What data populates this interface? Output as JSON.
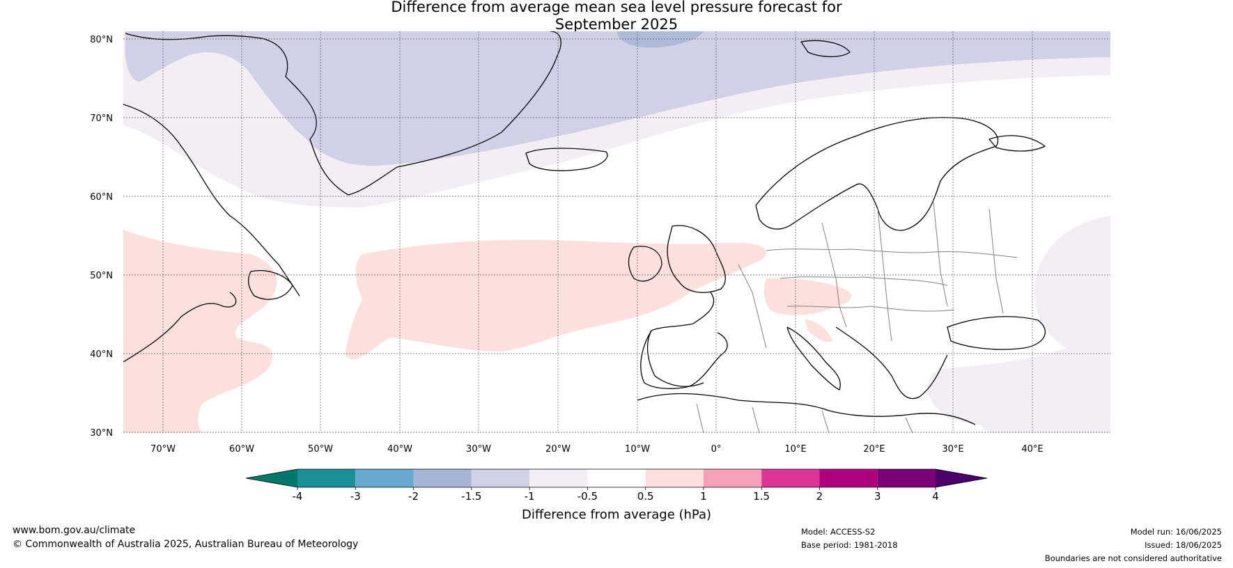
{
  "title": {
    "line1": "Difference from average mean sea level pressure forecast for",
    "line2": "September 2025"
  },
  "map": {
    "lat_labels": [
      "80°N",
      "70°N",
      "60°N",
      "50°N",
      "40°N",
      "30°N"
    ],
    "lon_labels": [
      "70°W",
      "60°W",
      "50°W",
      "40°W",
      "30°W",
      "20°W",
      "10°W",
      "0°",
      "10°E",
      "20°E",
      "30°E",
      "40°E"
    ],
    "extent": {
      "lon_min": -75,
      "lon_max": 50,
      "lat_min": 30,
      "lat_max": 81
    },
    "gridlines": true,
    "anomaly_regions": [
      {
        "name": "negative-anomaly-region",
        "category": "-1.5 to -1",
        "color": "#d0d1e6"
      },
      {
        "name": "strong-negative-region",
        "category": "-2 to -1.5",
        "color": "#a6b4d6"
      },
      {
        "name": "weak-negative-region",
        "category": "-1 to -0.5",
        "color": "#f3eef6"
      },
      {
        "name": "positive-anomaly-region",
        "category": "0.5 to 1",
        "color": "#fbe0dd"
      }
    ]
  },
  "colorbar": {
    "title": "Difference from average (hPa)",
    "tick_labels": [
      "-4",
      "-3",
      "-2",
      "-1.5",
      "-1",
      "-0.5",
      "0.5",
      "1",
      "1.5",
      "2",
      "3",
      "4"
    ],
    "under_color": "#00796b",
    "over_color": "#4a0068",
    "colors": [
      "#1a9198",
      "#67a9cf",
      "#a6b4d6",
      "#d0d1e6",
      "#f3eef6",
      "#ffffff",
      "#fbe0dd",
      "#f7a1b9",
      "#dd3497",
      "#ae017e",
      "#7a0177"
    ]
  },
  "footer": {
    "website": "www.bom.gov.au/climate",
    "copyright": "© Commonwealth of Australia 2025, Australian Bureau of Meteorology",
    "model": "Model: ACCESS-S2",
    "base_period": "Base period: 1981-2018",
    "model_run": "Model run: 16/06/2025",
    "issued": "Issued: 18/06/2025",
    "disclaimer": "Boundaries are not considered authoritative"
  }
}
